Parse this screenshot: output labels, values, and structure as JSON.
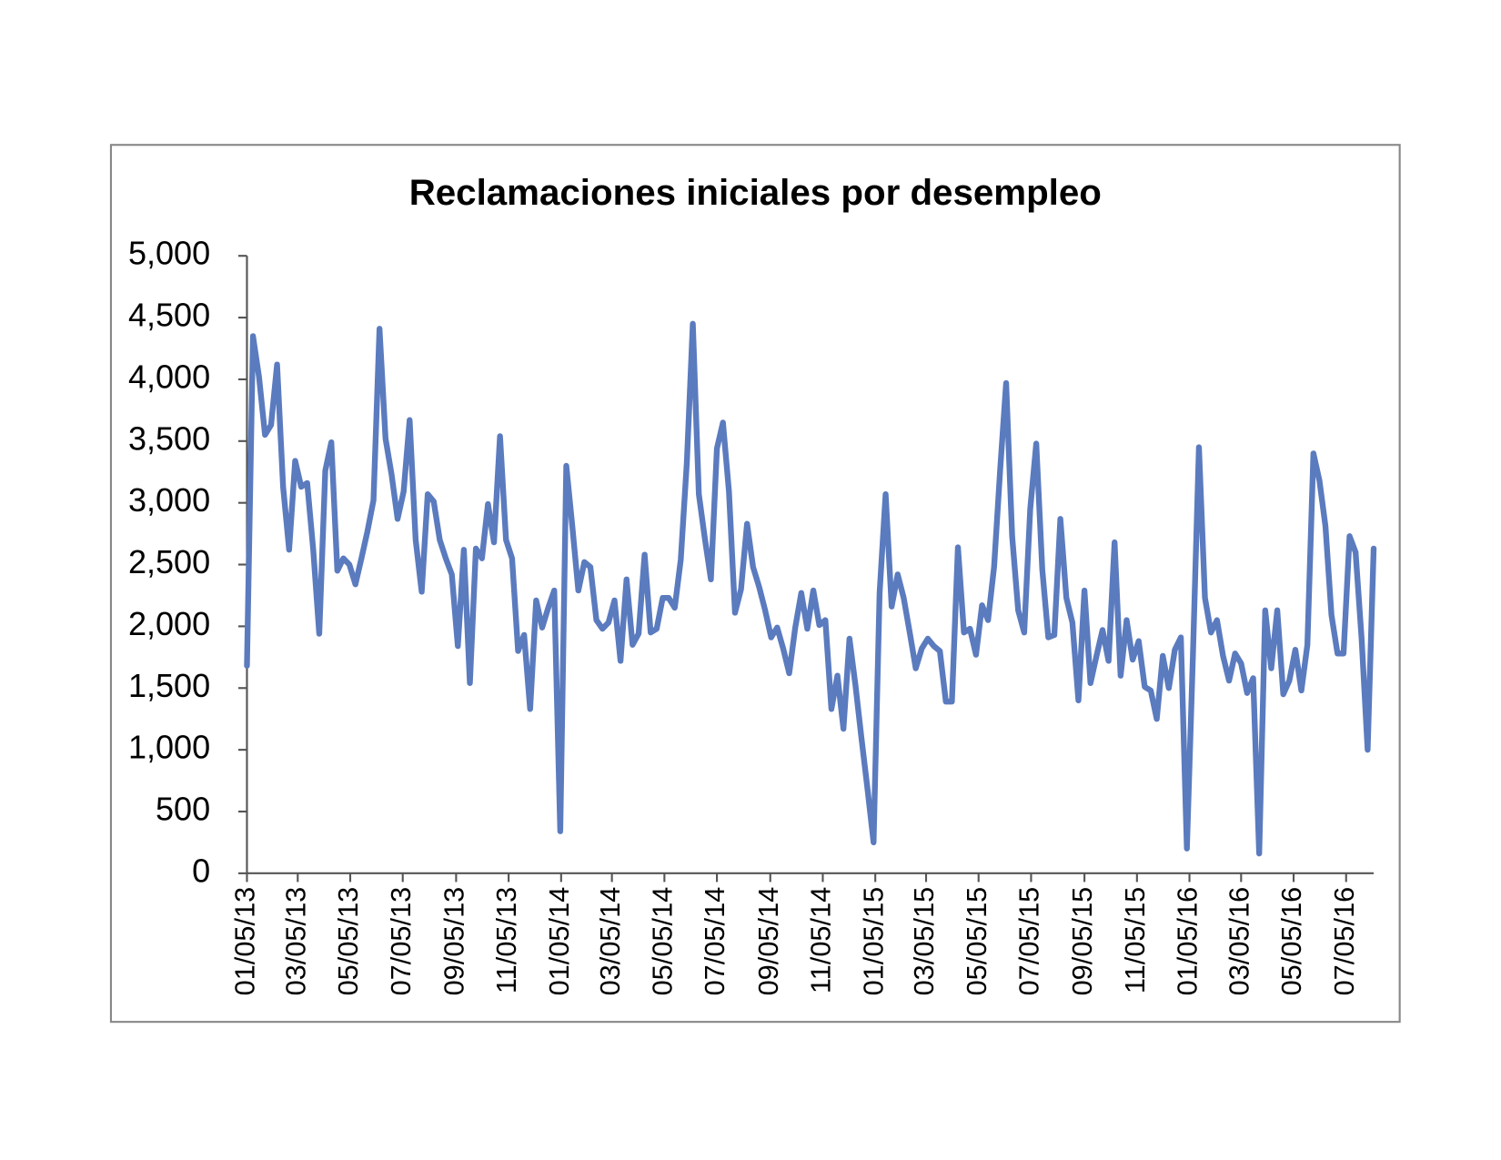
{
  "chart_data": {
    "type": "line",
    "title": "Reclamaciones iniciales por desempleo",
    "x": [
      "2013-01-05",
      "2013-01-12",
      "2013-01-19",
      "2013-01-26",
      "2013-02-02",
      "2013-02-09",
      "2013-02-16",
      "2013-02-23",
      "2013-03-02",
      "2013-03-09",
      "2013-03-16",
      "2013-03-23",
      "2013-03-30",
      "2013-04-06",
      "2013-04-13",
      "2013-04-20",
      "2013-04-27",
      "2013-05-04",
      "2013-05-11",
      "2013-05-18",
      "2013-05-25",
      "2013-06-01",
      "2013-06-08",
      "2013-06-15",
      "2013-06-22",
      "2013-06-29",
      "2013-07-06",
      "2013-07-13",
      "2013-07-20",
      "2013-07-27",
      "2013-08-03",
      "2013-08-10",
      "2013-08-17",
      "2013-08-24",
      "2013-08-31",
      "2013-09-07",
      "2013-09-14",
      "2013-09-21",
      "2013-09-28",
      "2013-10-05",
      "2013-10-12",
      "2013-10-19",
      "2013-10-26",
      "2013-11-02",
      "2013-11-09",
      "2013-11-16",
      "2013-11-23",
      "2013-11-30",
      "2013-12-07",
      "2013-12-14",
      "2013-12-21",
      "2013-12-28",
      "2014-01-04",
      "2014-01-11",
      "2014-01-18",
      "2014-01-25",
      "2014-02-01",
      "2014-02-08",
      "2014-02-15",
      "2014-02-22",
      "2014-03-01",
      "2014-03-08",
      "2014-03-15",
      "2014-03-22",
      "2014-03-29",
      "2014-04-05",
      "2014-04-12",
      "2014-04-19",
      "2014-04-26",
      "2014-05-03",
      "2014-05-10",
      "2014-05-17",
      "2014-05-24",
      "2014-05-31",
      "2014-06-07",
      "2014-06-14",
      "2014-06-21",
      "2014-06-28",
      "2014-07-05",
      "2014-07-12",
      "2014-07-19",
      "2014-07-26",
      "2014-08-02",
      "2014-08-09",
      "2014-08-16",
      "2014-08-23",
      "2014-08-30",
      "2014-09-06",
      "2014-09-13",
      "2014-09-20",
      "2014-09-27",
      "2014-10-04",
      "2014-10-11",
      "2014-10-18",
      "2014-10-25",
      "2014-11-01",
      "2014-11-08",
      "2014-11-15",
      "2014-11-22",
      "2014-11-29",
      "2014-12-06",
      "2014-12-13",
      "2014-12-20",
      "2014-12-27",
      "2015-01-03",
      "2015-01-10",
      "2015-01-17",
      "2015-01-24",
      "2015-01-31",
      "2015-02-07",
      "2015-02-14",
      "2015-02-21",
      "2015-02-28",
      "2015-03-07",
      "2015-03-14",
      "2015-03-21",
      "2015-03-28",
      "2015-04-04",
      "2015-04-11",
      "2015-04-18",
      "2015-04-25",
      "2015-05-02",
      "2015-05-09",
      "2015-05-16",
      "2015-05-23",
      "2015-05-30",
      "2015-06-06",
      "2015-06-13",
      "2015-06-20",
      "2015-06-27",
      "2015-07-04",
      "2015-07-11",
      "2015-07-18",
      "2015-07-25",
      "2015-08-01",
      "2015-08-08",
      "2015-08-15",
      "2015-08-22",
      "2015-08-29",
      "2015-09-05",
      "2015-09-12",
      "2015-09-19",
      "2015-09-26",
      "2015-10-03",
      "2015-10-10",
      "2015-10-17",
      "2015-10-24",
      "2015-10-31",
      "2015-11-07",
      "2015-11-14",
      "2015-11-21",
      "2015-11-28",
      "2015-12-05",
      "2015-12-12",
      "2015-12-19",
      "2015-12-26",
      "2016-01-02",
      "2016-01-09",
      "2016-01-16",
      "2016-01-23",
      "2016-01-30",
      "2016-02-06",
      "2016-02-13",
      "2016-02-20",
      "2016-02-27",
      "2016-03-05",
      "2016-03-12",
      "2016-03-19",
      "2016-03-26",
      "2016-04-02",
      "2016-04-09",
      "2016-04-16",
      "2016-04-23",
      "2016-04-30",
      "2016-05-07",
      "2016-05-14",
      "2016-05-21",
      "2016-05-28",
      "2016-06-04",
      "2016-06-11",
      "2016-06-18",
      "2016-06-25",
      "2016-07-02",
      "2016-07-09",
      "2016-07-16",
      "2016-07-23",
      "2016-07-30",
      "2016-08-06"
    ],
    "series": [
      {
        "color": "#5b7bbf",
        "values": [
          1680,
          4350,
          4020,
          3550,
          3630,
          4120,
          3130,
          2620,
          3340,
          3130,
          3160,
          2620,
          1940,
          3260,
          3490,
          2450,
          2550,
          2500,
          2340,
          2550,
          2770,
          3020,
          4410,
          3520,
          3230,
          2870,
          3090,
          3670,
          2700,
          2280,
          3070,
          3010,
          2700,
          2550,
          2420,
          1840,
          2620,
          1540,
          2630,
          2550,
          2990,
          2680,
          3540,
          2700,
          2550,
          1800,
          1930,
          1330,
          2210,
          1990,
          2150,
          2290,
          340,
          3300,
          2810,
          2290,
          2520,
          2480,
          2050,
          1980,
          2030,
          2210,
          1720,
          2380,
          1850,
          1940,
          2580,
          1950,
          1980,
          2230,
          2230,
          2150,
          2540,
          3320,
          4450,
          3070,
          2710,
          2380,
          3440,
          3650,
          3090,
          2110,
          2300,
          2830,
          2480,
          2320,
          2130,
          1910,
          1990,
          1820,
          1620,
          1990,
          2270,
          1980,
          2290,
          2010,
          2050,
          1330,
          1600,
          1170,
          1900,
          1520,
          1090,
          680,
          250,
          2270,
          3070,
          2160,
          2420,
          2230,
          1950,
          1660,
          1820,
          1900,
          1840,
          1800,
          1390,
          1390,
          2640,
          1950,
          1980,
          1770,
          2170,
          2050,
          2480,
          3260,
          3970,
          2730,
          2130,
          1950,
          2950,
          3480,
          2460,
          1910,
          1930,
          2870,
          2230,
          2030,
          1400,
          2290,
          1540,
          1760,
          1970,
          1720,
          2680,
          1600,
          2050,
          1730,
          1880,
          1510,
          1480,
          1250,
          1760,
          1500,
          1810,
          1910,
          200,
          1760,
          3450,
          2230,
          1950,
          2050,
          1760,
          1560,
          1780,
          1700,
          1460,
          1580,
          160,
          2130,
          1660,
          2130,
          1450,
          1560,
          1810,
          1480,
          1850,
          3400,
          3180,
          2810,
          2090,
          1780,
          1780,
          2730,
          2600,
          1900,
          1000,
          2630
        ]
      }
    ],
    "xlim": [
      "2013-01-05",
      "2016-08-06"
    ],
    "xticks": [
      {
        "value": "2013-01-05",
        "label": "01/05/13"
      },
      {
        "value": "2013-03-05",
        "label": "03/05/13"
      },
      {
        "value": "2013-05-05",
        "label": "05/05/13"
      },
      {
        "value": "2013-07-05",
        "label": "07/05/13"
      },
      {
        "value": "2013-09-05",
        "label": "09/05/13"
      },
      {
        "value": "2013-11-05",
        "label": "11/05/13"
      },
      {
        "value": "2014-01-05",
        "label": "01/05/14"
      },
      {
        "value": "2014-03-05",
        "label": "03/05/14"
      },
      {
        "value": "2014-05-05",
        "label": "05/05/14"
      },
      {
        "value": "2014-07-05",
        "label": "07/05/14"
      },
      {
        "value": "2014-09-05",
        "label": "09/05/14"
      },
      {
        "value": "2014-11-05",
        "label": "11/05/14"
      },
      {
        "value": "2015-01-05",
        "label": "01/05/15"
      },
      {
        "value": "2015-03-05",
        "label": "03/05/15"
      },
      {
        "value": "2015-05-05",
        "label": "05/05/15"
      },
      {
        "value": "2015-07-05",
        "label": "07/05/15"
      },
      {
        "value": "2015-09-05",
        "label": "09/05/15"
      },
      {
        "value": "2015-11-05",
        "label": "11/05/15"
      },
      {
        "value": "2016-01-05",
        "label": "01/05/16"
      },
      {
        "value": "2016-03-05",
        "label": "03/05/16"
      },
      {
        "value": "2016-05-05",
        "label": "05/05/16"
      },
      {
        "value": "2016-07-05",
        "label": "07/05/16"
      }
    ],
    "ylim": [
      0,
      5000
    ],
    "yticks": [
      0,
      500,
      {
        "value": 1000,
        "label": "1,000"
      },
      {
        "value": 1500,
        "label": "1,500"
      },
      {
        "value": 2000,
        "label": "2,000"
      },
      {
        "value": 2500,
        "label": "2,500"
      },
      {
        "value": 3000,
        "label": "3,000"
      },
      {
        "value": 3500,
        "label": "3,500"
      },
      {
        "value": 4000,
        "label": "4,000"
      },
      {
        "value": 4500,
        "label": "4,500"
      },
      {
        "value": 5000,
        "label": "5,000"
      }
    ],
    "grid": false
  }
}
